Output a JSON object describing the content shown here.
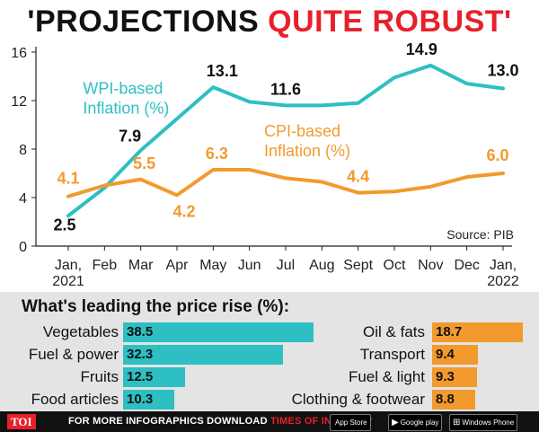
{
  "headline": {
    "part1": "'PROJECTIONS",
    "part2": "QUITE ROBUST'"
  },
  "chart_data": {
    "type": "line",
    "categories": [
      "Jan,\n2021",
      "Feb",
      "Mar",
      "Apr",
      "May",
      "Jun",
      "Jul",
      "Aug",
      "Sept",
      "Oct",
      "Nov",
      "Dec",
      "Jan,\n2022"
    ],
    "ylim": [
      0,
      16
    ],
    "yticks": [
      "0",
      "4",
      "8",
      "12",
      "16"
    ],
    "source": "Source: PIB",
    "series": [
      {
        "name": "WPI-based\nInflation (%)",
        "color": "#2dbfc3",
        "values": [
          2.5,
          4.8,
          7.9,
          10.5,
          13.1,
          11.9,
          11.6,
          11.6,
          11.8,
          13.9,
          14.9,
          13.4,
          13.0
        ],
        "labels": [
          {
            "index": 0,
            "text": "2.5"
          },
          {
            "index": 2,
            "text": "7.9"
          },
          {
            "index": 4,
            "text": "13.1"
          },
          {
            "index": 6,
            "text": "11.6"
          },
          {
            "index": 10,
            "text": "14.9"
          },
          {
            "index": 12,
            "text": "13.0"
          }
        ]
      },
      {
        "name": "CPI-based\nInflation (%)",
        "color": "#f29a2e",
        "values": [
          4.1,
          5.0,
          5.5,
          4.2,
          6.3,
          6.3,
          5.6,
          5.3,
          4.4,
          4.5,
          4.9,
          5.7,
          6.0
        ],
        "labels": [
          {
            "index": 0,
            "text": "4.1"
          },
          {
            "index": 2,
            "text": "5.5"
          },
          {
            "index": 3,
            "text": "4.2"
          },
          {
            "index": 4,
            "text": "6.3"
          },
          {
            "index": 8,
            "text": "4.4"
          },
          {
            "index": 12,
            "text": "6.0"
          }
        ]
      }
    ]
  },
  "price_rise": {
    "title": "What's leading the price rise (%):",
    "left_color": "#2dbfc3",
    "right_color": "#f29a2e",
    "left": [
      {
        "label": "Vegetables",
        "value": 38.5,
        "text": "38.5"
      },
      {
        "label": "Fuel & power",
        "value": 32.3,
        "text": "32.3"
      },
      {
        "label": "Fruits",
        "value": 12.5,
        "text": "12.5"
      },
      {
        "label": "Food articles",
        "value": 10.3,
        "text": "10.3"
      }
    ],
    "right": [
      {
        "label": "Oil & fats",
        "value": 18.7,
        "text": "18.7"
      },
      {
        "label": "Transport",
        "value": 9.4,
        "text": "9.4"
      },
      {
        "label": "Fuel & light",
        "value": 9.3,
        "text": "9.3"
      },
      {
        "label": "Clothing & footwear",
        "value": 8.8,
        "text": "8.8"
      }
    ]
  },
  "footer": {
    "logo": "TOI",
    "text_white": "FOR MORE  INFOGRAPHICS DOWNLOAD",
    "text_red": "TIMES OF INDIA APP",
    "badges": [
      {
        "icon": "apple-icon",
        "glyph": "",
        "label": "App Store"
      },
      {
        "icon": "play-icon",
        "glyph": "▶",
        "label": "Google play"
      },
      {
        "icon": "windows-icon",
        "glyph": "⊞",
        "label": "Windows Phone"
      }
    ]
  }
}
